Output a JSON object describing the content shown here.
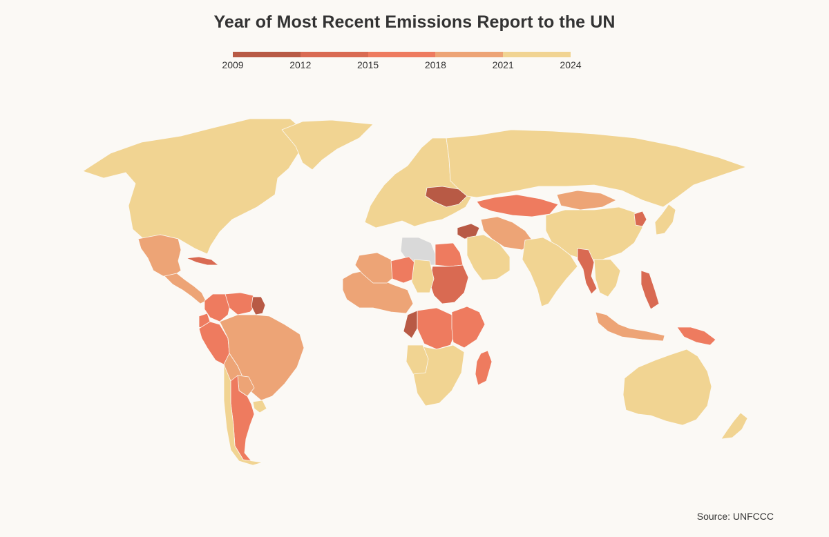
{
  "title": "Year of Most Recent Emissions Report to the UN",
  "source": "Source: UNFCCC",
  "legend": {
    "ticks": [
      "2009",
      "2012",
      "2015",
      "2018",
      "2021",
      "2024"
    ],
    "bins": [
      {
        "from": 2009,
        "to": 2012,
        "color": "#b85a45"
      },
      {
        "from": 2012,
        "to": 2015,
        "color": "#d96a52"
      },
      {
        "from": 2015,
        "to": 2018,
        "color": "#ee7b5f"
      },
      {
        "from": 2018,
        "to": 2021,
        "color": "#eda476"
      },
      {
        "from": 2021,
        "to": 2024,
        "color": "#f1d492"
      }
    ]
  },
  "colors": {
    "background": "#fbf9f5",
    "no_data": "#d9d9d9",
    "border": "#fbf9f5"
  },
  "regions": [
    {
      "name": "North America",
      "year": 2023
    },
    {
      "name": "Greenland",
      "year": 2023
    },
    {
      "name": "Mexico",
      "year": 2020
    },
    {
      "name": "Cuba",
      "year": 2014
    },
    {
      "name": "Central America",
      "year": 2019
    },
    {
      "name": "Colombia",
      "year": 2016
    },
    {
      "name": "Venezuela",
      "year": 2017
    },
    {
      "name": "Guyana",
      "year": 2011
    },
    {
      "name": "Ecuador",
      "year": 2016
    },
    {
      "name": "Peru",
      "year": 2016
    },
    {
      "name": "Brazil",
      "year": 2020
    },
    {
      "name": "Bolivia",
      "year": 2020
    },
    {
      "name": "Paraguay",
      "year": 2020
    },
    {
      "name": "Uruguay",
      "year": 2022
    },
    {
      "name": "Argentina",
      "year": 2016
    },
    {
      "name": "Chile",
      "year": 2022
    },
    {
      "name": "Europe",
      "year": 2023
    },
    {
      "name": "Ukraine",
      "year": 2011
    },
    {
      "name": "Russia",
      "year": 2023
    },
    {
      "name": "Libya",
      "year": null
    },
    {
      "name": "Egypt",
      "year": 2016
    },
    {
      "name": "Sudan",
      "year": 2013
    },
    {
      "name": "Syria",
      "year": 2010
    },
    {
      "name": "West Africa",
      "year": 2019
    },
    {
      "name": "Mali",
      "year": 2019
    },
    {
      "name": "Niger",
      "year": 2017
    },
    {
      "name": "Chad",
      "year": 2022
    },
    {
      "name": "DR Congo",
      "year": 2017
    },
    {
      "name": "Congo",
      "year": 2010
    },
    {
      "name": "East Africa",
      "year": 2016
    },
    {
      "name": "Southern Africa",
      "year": 2022
    },
    {
      "name": "Angola",
      "year": 2022
    },
    {
      "name": "Madagascar",
      "year": 2016
    },
    {
      "name": "Arabia",
      "year": 2022
    },
    {
      "name": "Iran",
      "year": 2020
    },
    {
      "name": "Central Asia",
      "year": 2016
    },
    {
      "name": "Mongolia",
      "year": 2020
    },
    {
      "name": "China",
      "year": 2023
    },
    {
      "name": "India",
      "year": 2023
    },
    {
      "name": "Myanmar",
      "year": 2013
    },
    {
      "name": "Southeast Asia",
      "year": 2022
    },
    {
      "name": "Philippines",
      "year": 2014
    },
    {
      "name": "Indonesia",
      "year": 2020
    },
    {
      "name": "Papua New Guinea",
      "year": 2015
    },
    {
      "name": "Japan",
      "year": 2023
    },
    {
      "name": "North Korea",
      "year": 2014
    },
    {
      "name": "Australia",
      "year": 2023
    },
    {
      "name": "New Zealand",
      "year": 2023
    }
  ]
}
